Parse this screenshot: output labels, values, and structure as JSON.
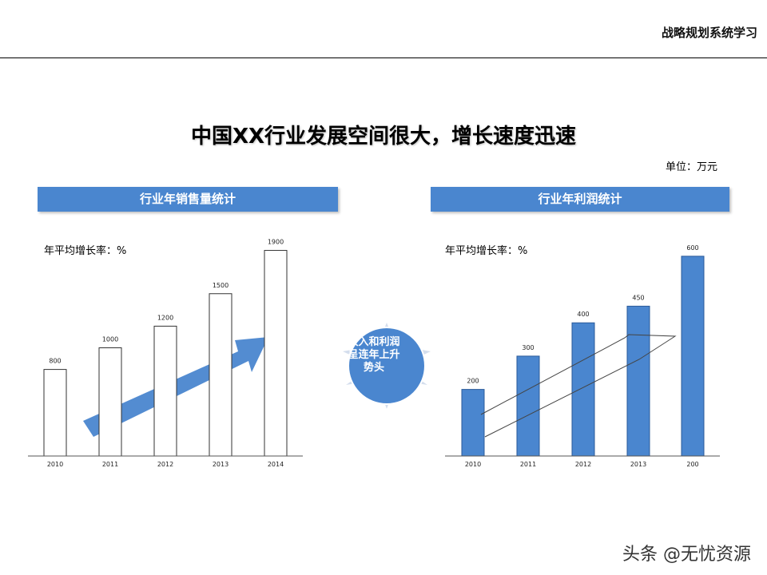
{
  "header": {
    "title": "战略规划系统学习"
  },
  "main_title": "中国XX行业发展空间很大，增长速度迅速",
  "unit": "单位：万元",
  "panels": {
    "left": {
      "title": "行业年销售量统计",
      "growth_label": "年平均增长率：%"
    },
    "right": {
      "title": "行业年利润统计",
      "growth_label": "年平均增长率：%"
    }
  },
  "bubble": {
    "text": "收入和利润呈连年上升势头"
  },
  "watermark": "头条 @无忧资源",
  "colors": {
    "accent": "#4a86cf",
    "bar_fill_right": "#4a86cf",
    "bar_fill_left": "#ffffff"
  },
  "chart_data": [
    {
      "type": "bar",
      "categories": [
        "2010",
        "2011",
        "2012",
        "2013",
        "2014"
      ],
      "values": [
        800,
        1000,
        1200,
        1500,
        1900
      ],
      "data_labels": [
        "800",
        "1000",
        "1200",
        "1500",
        "1900"
      ],
      "title": "行业年销售量统计",
      "ylim": [
        0,
        2000
      ],
      "grid": false,
      "annotation": "upward-trend-arrow"
    },
    {
      "type": "bar",
      "categories": [
        "2010",
        "2011",
        "2012",
        "2013",
        "200"
      ],
      "values": [
        200,
        300,
        400,
        450,
        600
      ],
      "data_labels": [
        "200",
        "300",
        "400",
        "450",
        "600"
      ],
      "title": "行业年利润统计",
      "ylim": [
        0,
        650
      ],
      "grid": false,
      "annotation": "upward-trend-arrow-outline"
    }
  ]
}
